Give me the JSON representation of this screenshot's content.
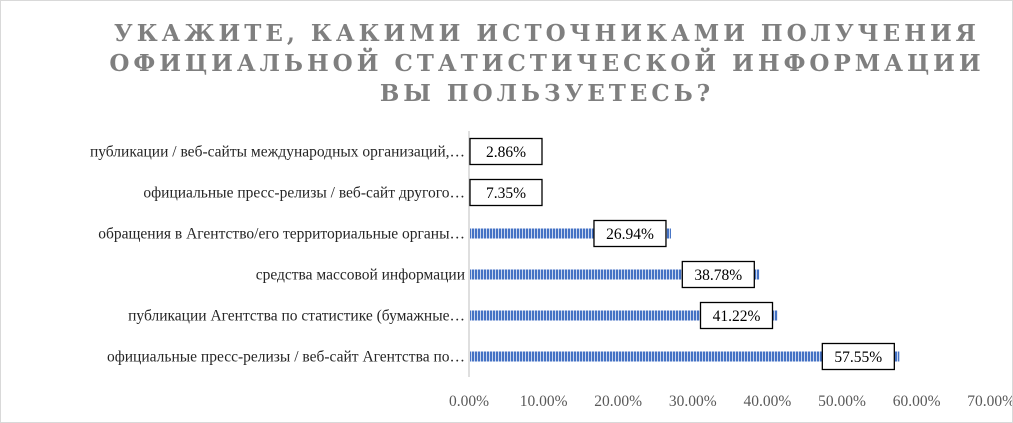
{
  "chart_data": {
    "type": "bar",
    "orientation": "horizontal",
    "title_lines": [
      "УКАЖИТЕ, КАКИМИ ИСТОЧНИКАМИ ПОЛУЧЕНИЯ",
      "ОФИЦИАЛЬНОЙ СТАТИСТИЧЕСКОЙ ИНФОРМАЦИИ",
      "ВЫ ПОЛЬЗУЕТЕСЬ?"
    ],
    "categories": [
      "публикации / веб-сайты международных организаций,…",
      "официальные пресс-релизы / веб-сайт другого…",
      "обращения в Агентство/его территориальные органы…",
      "средства массовой информации",
      "публикации Агентства по статистике (бумажные…",
      "официальные пресс-релизы / веб-сайт Агентства по…"
    ],
    "values": [
      2.86,
      7.35,
      26.94,
      38.78,
      41.22,
      57.55
    ],
    "data_labels": [
      "2.86%",
      "7.35%",
      "26.94%",
      "38.78%",
      "41.22%",
      "57.55%"
    ],
    "x_ticks": [
      "0.00%",
      "10.00%",
      "20.00%",
      "30.00%",
      "40.00%",
      "50.00%",
      "60.00%",
      "70.00%"
    ],
    "xlim": [
      0,
      70
    ],
    "grid": false,
    "legend": "none",
    "colors": {
      "bar": "#4472c4",
      "bar_stripe": "#c9d6ee",
      "title": "#7f7f7f",
      "axis_line": "#bfbfbf",
      "category_text": "#262626",
      "tick_text": "#595959",
      "label_border": "#000000"
    }
  }
}
